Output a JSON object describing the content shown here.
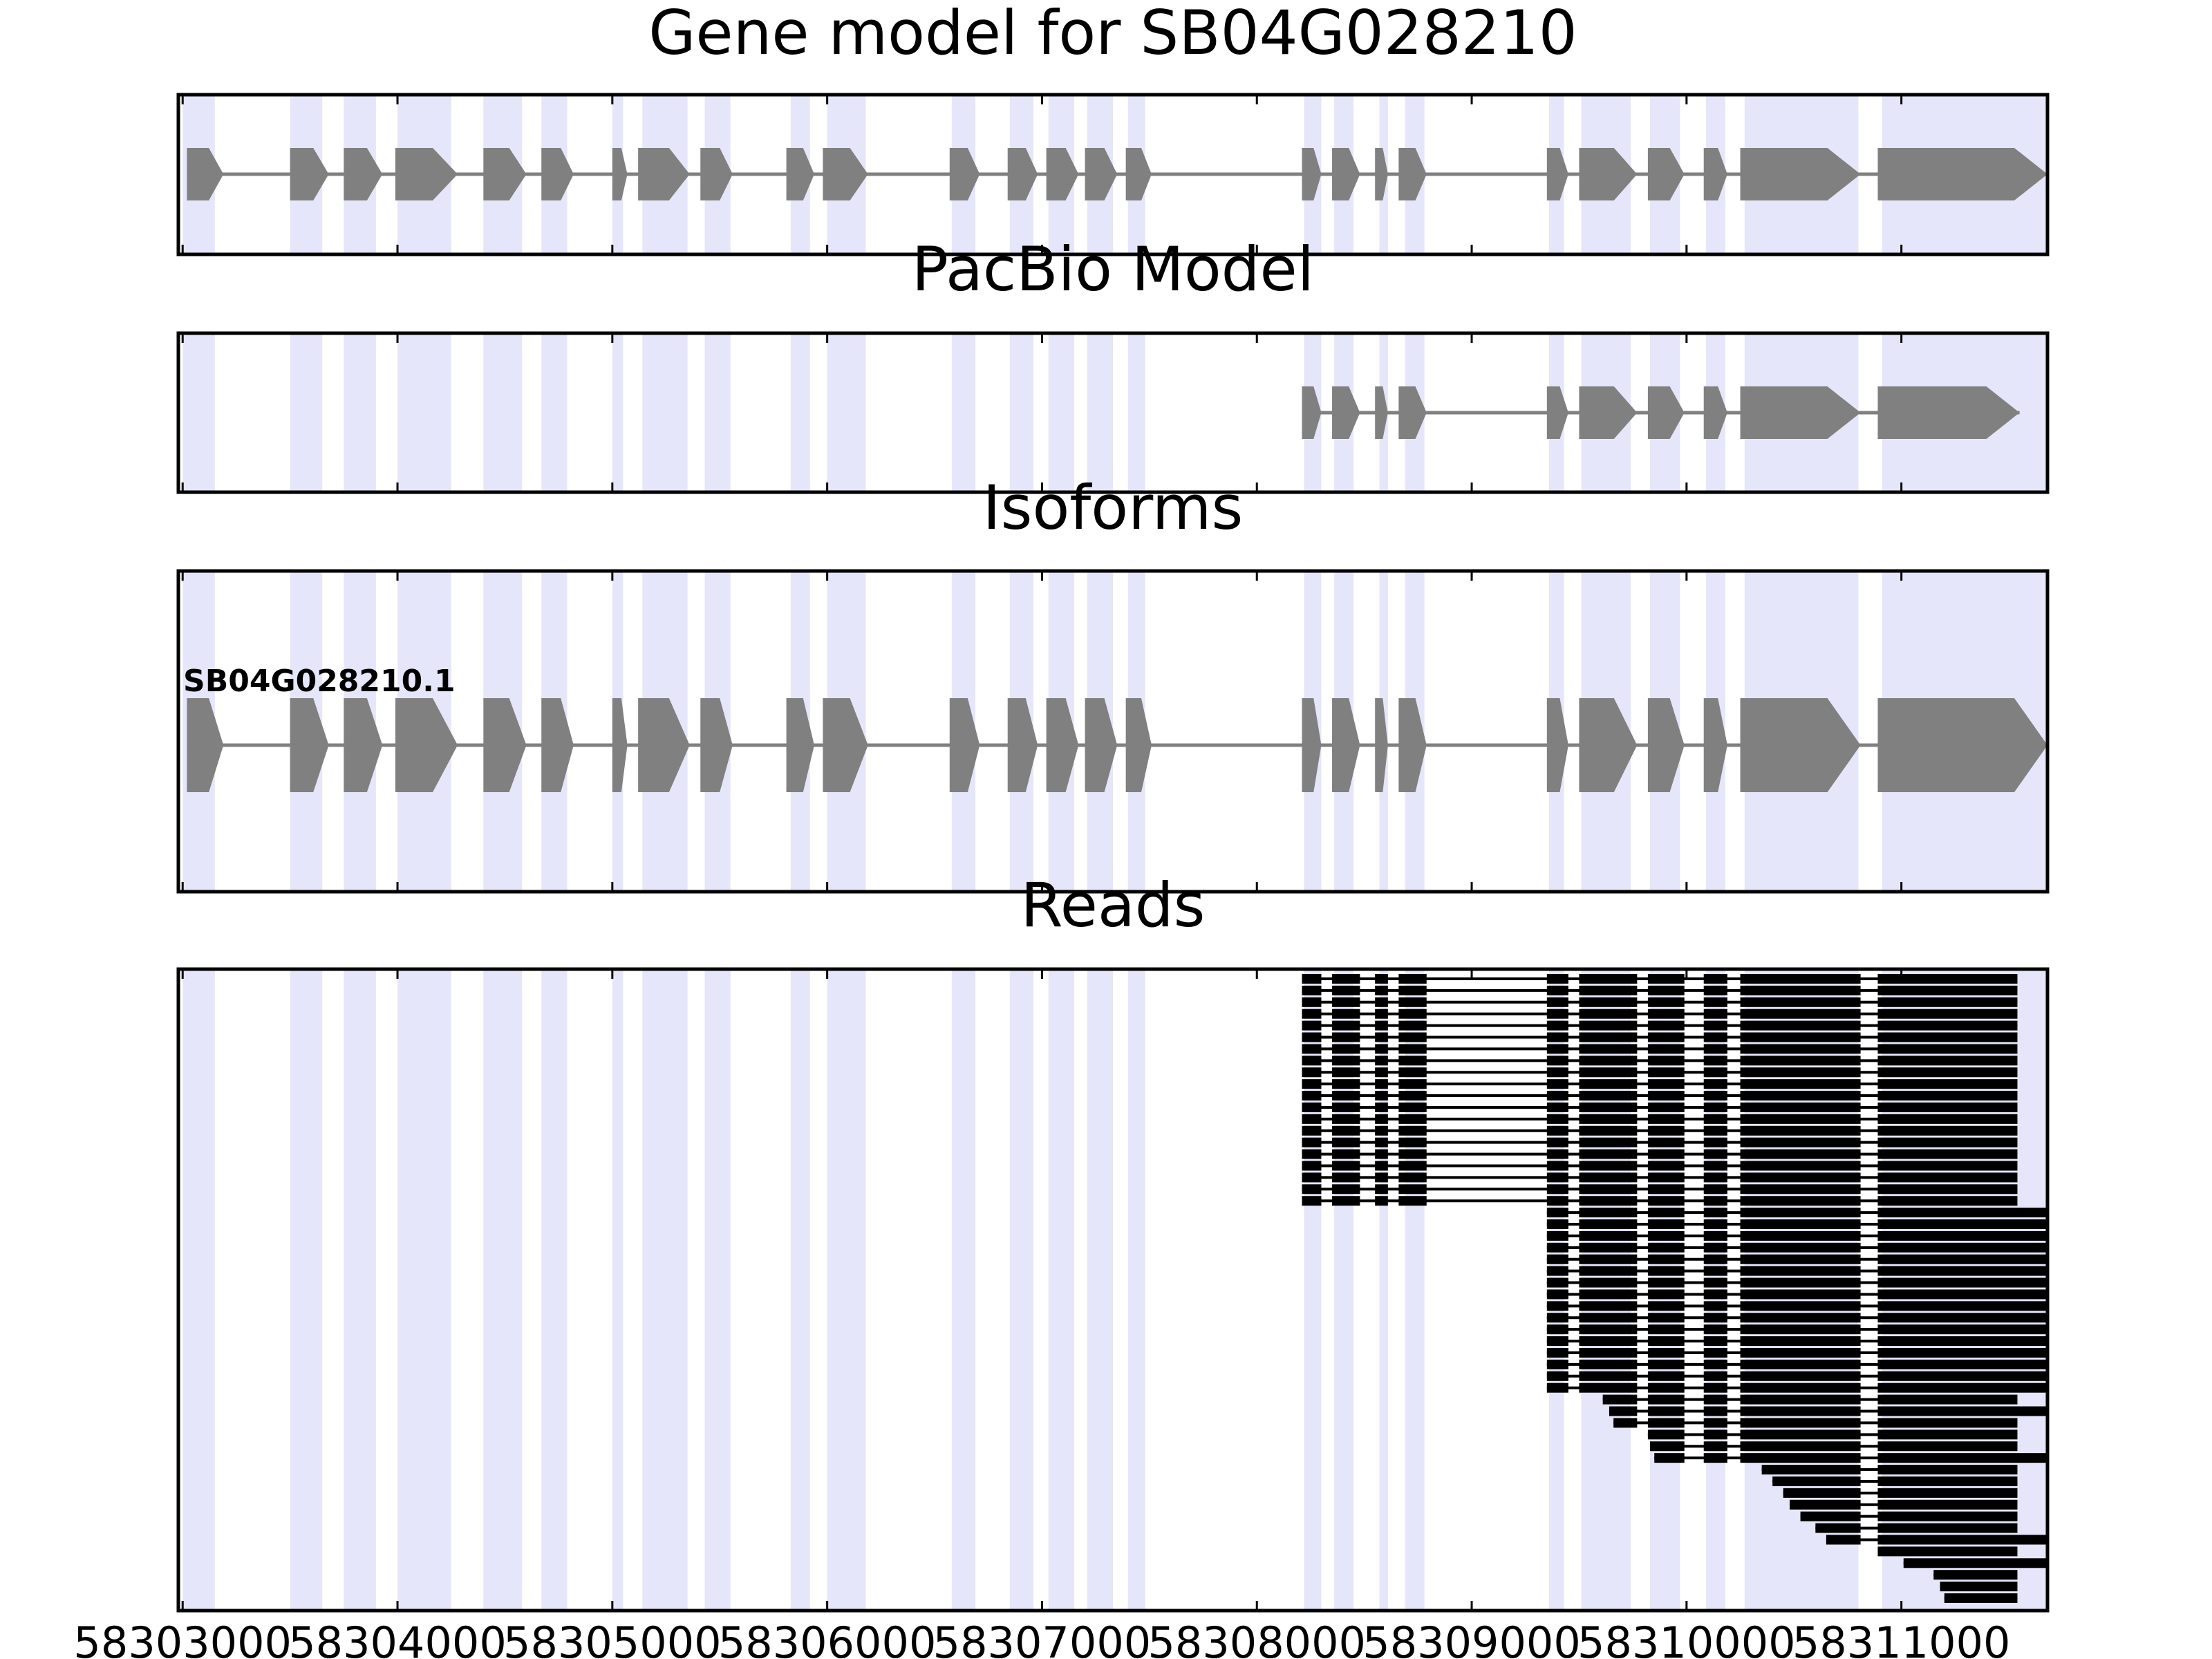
{
  "chart_data": {
    "type": "gene-structure",
    "xlim": [
      58302980,
      58311680
    ],
    "x_ticks": [
      58303000,
      58304000,
      58305000,
      58306000,
      58307000,
      58308000,
      58309000,
      58310000,
      58311000
    ],
    "x_tick_labels": [
      "58303000",
      "58304000",
      "58305000",
      "58306000",
      "58307000",
      "58308000",
      "58309000",
      "58310000",
      "58311000"
    ],
    "colors": {
      "exon": "#808080",
      "intron": "#808080",
      "highlight": "#e6e6fa",
      "read": "#000000"
    },
    "highlight_regions": [
      [
        58303000,
        58303150
      ],
      [
        58303500,
        58303650
      ],
      [
        58303750,
        58303900
      ],
      [
        58304000,
        58304250
      ],
      [
        58304400,
        58304580
      ],
      [
        58304670,
        58304790
      ],
      [
        58305000,
        58305050
      ],
      [
        58305140,
        58305350
      ],
      [
        58305430,
        58305550
      ],
      [
        58305830,
        58305920
      ],
      [
        58306000,
        58306180
      ],
      [
        58306580,
        58306690
      ],
      [
        58306850,
        58306960
      ],
      [
        58307030,
        58307150
      ],
      [
        58307210,
        58307330
      ],
      [
        58307400,
        58307480
      ],
      [
        58308220,
        58308300
      ],
      [
        58308360,
        58308450
      ],
      [
        58308570,
        58308610
      ],
      [
        58308690,
        58308780
      ],
      [
        58309360,
        58309430
      ],
      [
        58309510,
        58309740
      ],
      [
        58309830,
        58309970
      ],
      [
        58310090,
        58310180
      ],
      [
        58310270,
        58310800
      ],
      [
        58310910,
        58311680
      ]
    ],
    "panels": [
      {
        "title": "Gene model for SB04G028210",
        "exons": [
          [
            58303020,
            58303190
          ],
          [
            58303500,
            58303680
          ],
          [
            58303750,
            58303930
          ],
          [
            58303990,
            58304280
          ],
          [
            58304400,
            58304600
          ],
          [
            58304670,
            58304820
          ],
          [
            58305000,
            58305070
          ],
          [
            58305120,
            58305360
          ],
          [
            58305410,
            58305560
          ],
          [
            58305810,
            58305940
          ],
          [
            58305980,
            58306190
          ],
          [
            58306570,
            58306710
          ],
          [
            58306840,
            58306980
          ],
          [
            58307020,
            58307170
          ],
          [
            58307200,
            58307350
          ],
          [
            58307390,
            58307510
          ],
          [
            58308210,
            58308300
          ],
          [
            58308350,
            58308480
          ],
          [
            58308550,
            58308610
          ],
          [
            58308660,
            58308790
          ],
          [
            58309350,
            58309450
          ],
          [
            58309500,
            58309770
          ],
          [
            58309820,
            58309990
          ],
          [
            58310080,
            58310190
          ],
          [
            58310250,
            58310810
          ],
          [
            58310890,
            58311680
          ]
        ]
      },
      {
        "title": "PacBio Model",
        "exons": [
          [
            58308210,
            58308300
          ],
          [
            58308350,
            58308480
          ],
          [
            58308550,
            58308610
          ],
          [
            58308660,
            58308790
          ],
          [
            58309350,
            58309450
          ],
          [
            58309500,
            58309770
          ],
          [
            58309820,
            58309990
          ],
          [
            58310080,
            58310190
          ],
          [
            58310250,
            58310810
          ],
          [
            58310890,
            58311550
          ]
        ]
      },
      {
        "title": "Isoforms",
        "isoform_label": "SB04G028210.1",
        "exons": [
          [
            58303020,
            58303190
          ],
          [
            58303500,
            58303680
          ],
          [
            58303750,
            58303930
          ],
          [
            58303990,
            58304280
          ],
          [
            58304400,
            58304600
          ],
          [
            58304670,
            58304820
          ],
          [
            58305000,
            58305070
          ],
          [
            58305120,
            58305360
          ],
          [
            58305410,
            58305560
          ],
          [
            58305810,
            58305940
          ],
          [
            58305980,
            58306190
          ],
          [
            58306570,
            58306710
          ],
          [
            58306840,
            58306980
          ],
          [
            58307020,
            58307170
          ],
          [
            58307200,
            58307350
          ],
          [
            58307390,
            58307510
          ],
          [
            58308210,
            58308300
          ],
          [
            58308350,
            58308480
          ],
          [
            58308550,
            58308610
          ],
          [
            58308660,
            58308790
          ],
          [
            58309350,
            58309450
          ],
          [
            58309500,
            58309770
          ],
          [
            58309820,
            58309990
          ],
          [
            58310080,
            58310190
          ],
          [
            58310250,
            58310810
          ],
          [
            58310890,
            58311680
          ]
        ]
      },
      {
        "title": "Reads",
        "reads": [
          {
            "start": 58308210,
            "end": 58311540
          },
          {
            "start": 58308210,
            "end": 58311540
          },
          {
            "start": 58308210,
            "end": 58311540
          },
          {
            "start": 58308210,
            "end": 58311540
          },
          {
            "start": 58308210,
            "end": 58311540
          },
          {
            "start": 58308210,
            "end": 58311540
          },
          {
            "start": 58308210,
            "end": 58311540
          },
          {
            "start": 58308210,
            "end": 58311540
          },
          {
            "start": 58308210,
            "end": 58311540
          },
          {
            "start": 58308210,
            "end": 58311540
          },
          {
            "start": 58308210,
            "end": 58311540
          },
          {
            "start": 58308210,
            "end": 58311540
          },
          {
            "start": 58308210,
            "end": 58311540
          },
          {
            "start": 58308210,
            "end": 58311540
          },
          {
            "start": 58308210,
            "end": 58311540
          },
          {
            "start": 58308210,
            "end": 58311540
          },
          {
            "start": 58308210,
            "end": 58311540
          },
          {
            "start": 58308210,
            "end": 58311540
          },
          {
            "start": 58308210,
            "end": 58311540
          },
          {
            "start": 58308210,
            "end": 58311540
          },
          {
            "start": 58309350,
            "end": 58311680
          },
          {
            "start": 58309350,
            "end": 58311680
          },
          {
            "start": 58309350,
            "end": 58311680
          },
          {
            "start": 58309350,
            "end": 58311680
          },
          {
            "start": 58309350,
            "end": 58311680
          },
          {
            "start": 58309350,
            "end": 58311680
          },
          {
            "start": 58309350,
            "end": 58311680
          },
          {
            "start": 58309350,
            "end": 58311680
          },
          {
            "start": 58309350,
            "end": 58311680
          },
          {
            "start": 58309350,
            "end": 58311680
          },
          {
            "start": 58309350,
            "end": 58311680
          },
          {
            "start": 58309350,
            "end": 58311680
          },
          {
            "start": 58309350,
            "end": 58311680
          },
          {
            "start": 58309350,
            "end": 58311680
          },
          {
            "start": 58309350,
            "end": 58311680
          },
          {
            "start": 58309350,
            "end": 58311680
          },
          {
            "start": 58309610,
            "end": 58311540
          },
          {
            "start": 58309640,
            "end": 58311680
          },
          {
            "start": 58309660,
            "end": 58311540
          },
          {
            "start": 58309820,
            "end": 58311540
          },
          {
            "start": 58309830,
            "end": 58311540
          },
          {
            "start": 58309850,
            "end": 58311680
          },
          {
            "start": 58310350,
            "end": 58311540
          },
          {
            "start": 58310400,
            "end": 58311540
          },
          {
            "start": 58310450,
            "end": 58311540
          },
          {
            "start": 58310480,
            "end": 58311540
          },
          {
            "start": 58310530,
            "end": 58311540
          },
          {
            "start": 58310600,
            "end": 58311540
          },
          {
            "start": 58310650,
            "end": 58311680
          },
          {
            "start": 58310890,
            "end": 58311540
          },
          {
            "start": 58311010,
            "end": 58311680
          },
          {
            "start": 58311150,
            "end": 58311540
          },
          {
            "start": 58311180,
            "end": 58311540
          },
          {
            "start": 58311200,
            "end": 58311540
          }
        ]
      }
    ]
  }
}
